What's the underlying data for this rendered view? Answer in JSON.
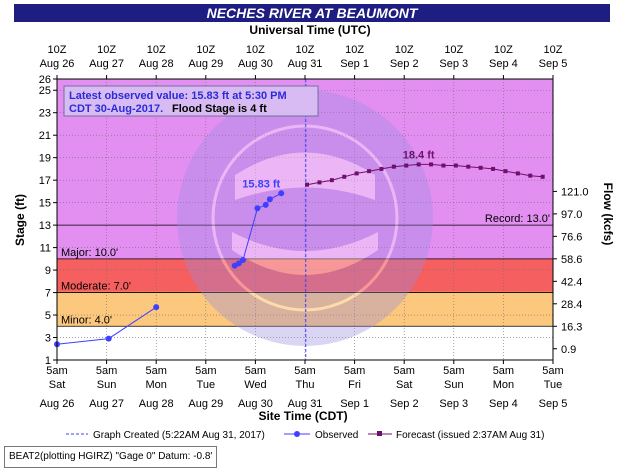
{
  "colors": {
    "frame_bg": "#ffffff",
    "title_bar": "#1d1d82",
    "plot_bg": "#e38ff2",
    "major": "#f55f5f",
    "moderate": "#f19d66",
    "minor": "#fcc87d",
    "below": "#ffffff",
    "observed": "#3f3fff",
    "forecast": "#70106d"
  },
  "chart_data": {
    "type": "line",
    "title": "NECHES RIVER AT BEAUMONT",
    "top_axis_label": "Universal Time (UTC)",
    "xlabel": "Site Time (CDT)",
    "ylabel": "Stage (ft)",
    "y2label": "Flow (kcfs)",
    "ylim": [
      1,
      26
    ],
    "y_ticks": [
      1,
      3,
      5,
      7,
      9,
      11,
      13,
      15,
      17,
      19,
      21,
      23,
      25,
      26
    ],
    "xlim": [
      "2017-08-26T05:00",
      "2017-09-05T05:00"
    ],
    "top_ticks": [
      {
        "line1": "10Z",
        "line2": "Aug 26"
      },
      {
        "line1": "10Z",
        "line2": "Aug 27"
      },
      {
        "line1": "10Z",
        "line2": "Aug 28"
      },
      {
        "line1": "10Z",
        "line2": "Aug 29"
      },
      {
        "line1": "10Z",
        "line2": "Aug 30"
      },
      {
        "line1": "10Z",
        "line2": "Aug 31"
      },
      {
        "line1": "10Z",
        "line2": "Sep 1"
      },
      {
        "line1": "10Z",
        "line2": "Sep 2"
      },
      {
        "line1": "10Z",
        "line2": "Sep 3"
      },
      {
        "line1": "10Z",
        "line2": "Sep 4"
      },
      {
        "line1": "10Z",
        "line2": "Sep 5"
      }
    ],
    "bottom_ticks": [
      {
        "line1": "5am",
        "line2": "Sat",
        "line3": "Aug 26"
      },
      {
        "line1": "5am",
        "line2": "Sun",
        "line3": "Aug 27"
      },
      {
        "line1": "5am",
        "line2": "Mon",
        "line3": "Aug 28"
      },
      {
        "line1": "5am",
        "line2": "Tue",
        "line3": "Aug 29"
      },
      {
        "line1": "5am",
        "line2": "Wed",
        "line3": "Aug 30"
      },
      {
        "line1": "5am",
        "line2": "Thu",
        "line3": "Aug 31"
      },
      {
        "line1": "5am",
        "line2": "Fri",
        "line3": "Sep 1"
      },
      {
        "line1": "5am",
        "line2": "Sat",
        "line3": "Sep 2"
      },
      {
        "line1": "5am",
        "line2": "Sun",
        "line3": "Sep 3"
      },
      {
        "line1": "5am",
        "line2": "Mon",
        "line3": "Sep 4"
      },
      {
        "line1": "5am",
        "line2": "Tue",
        "line3": "Sep 5"
      }
    ],
    "flow_ticks": [
      {
        "stage": 2,
        "label": "0.9"
      },
      {
        "stage": 4,
        "label": "16.3"
      },
      {
        "stage": 6,
        "label": "28.4"
      },
      {
        "stage": 8,
        "label": "42.4"
      },
      {
        "stage": 10,
        "label": "58.6"
      },
      {
        "stage": 12,
        "label": "76.6"
      },
      {
        "stage": 14,
        "label": "97.0"
      },
      {
        "stage": 16,
        "label": "121.0"
      }
    ],
    "flood_categories": [
      {
        "name": "Minor",
        "label": "Minor: 4.0'",
        "from": 4,
        "to": 7,
        "color_key": "minor"
      },
      {
        "name": "Moderate",
        "label": "Moderate: 7.0'",
        "from": 7,
        "to": 10,
        "color_key": "moderate"
      },
      {
        "name": "Major",
        "label": "Major: 10.0'",
        "from": 10,
        "to": 26,
        "color_key": "major"
      }
    ],
    "record": {
      "value": 13.0,
      "label": "Record: 13.0'"
    },
    "graph_created": "2017-08-31T05:22",
    "series": [
      {
        "name": "Observed",
        "points": [
          [
            "2017-08-26T05:00",
            2.4
          ],
          [
            "2017-08-27T06:00",
            2.9
          ],
          [
            "2017-08-28T05:00",
            5.7
          ]
        ]
      },
      {
        "name": "Observed",
        "points": [
          [
            "2017-08-29T19:00",
            9.4
          ],
          [
            "2017-08-29T21:00",
            9.6
          ],
          [
            "2017-08-29T23:00",
            9.9
          ],
          [
            "2017-08-30T06:00",
            14.5
          ],
          [
            "2017-08-30T10:00",
            14.8
          ],
          [
            "2017-08-30T12:00",
            15.3
          ],
          [
            "2017-08-30T17:30",
            15.83
          ]
        ]
      },
      {
        "name": "Forecast",
        "points": [
          [
            "2017-08-31T06:00",
            16.6
          ],
          [
            "2017-08-31T12:00",
            16.8
          ],
          [
            "2017-08-31T18:00",
            17.0
          ],
          [
            "2017-09-01T00:00",
            17.3
          ],
          [
            "2017-09-01T06:00",
            17.6
          ],
          [
            "2017-09-01T12:00",
            17.8
          ],
          [
            "2017-09-01T18:00",
            18.0
          ],
          [
            "2017-09-02T00:00",
            18.2
          ],
          [
            "2017-09-02T06:00",
            18.3
          ],
          [
            "2017-09-02T12:00",
            18.4
          ],
          [
            "2017-09-02T18:00",
            18.4
          ],
          [
            "2017-09-03T00:00",
            18.3
          ],
          [
            "2017-09-03T06:00",
            18.3
          ],
          [
            "2017-09-03T12:00",
            18.2
          ],
          [
            "2017-09-03T18:00",
            18.1
          ],
          [
            "2017-09-04T00:00",
            18.0
          ],
          [
            "2017-09-04T06:00",
            17.8
          ],
          [
            "2017-09-04T12:00",
            17.6
          ],
          [
            "2017-09-04T18:00",
            17.4
          ],
          [
            "2017-09-05T00:00",
            17.3
          ]
        ]
      }
    ],
    "annotations": {
      "latest_value_label": "15.83 ft",
      "peak_label": "18.4 ft",
      "info_box_line1": "Latest observed value: 15.83 ft at 5:30 PM",
      "info_box_line2_a": "CDT 30-Aug-2017.",
      "info_box_line2_b": "Flood Stage is 4 ft"
    },
    "legend": {
      "graph_created": "Graph Created (5:22AM Aug 31, 2017)",
      "observed": "Observed",
      "forecast": "Forecast (issued 2:37AM Aug 31)"
    },
    "footer": "BEAT2(plotting HGIRZ) \"Gage 0\" Datum: -0.8'"
  }
}
